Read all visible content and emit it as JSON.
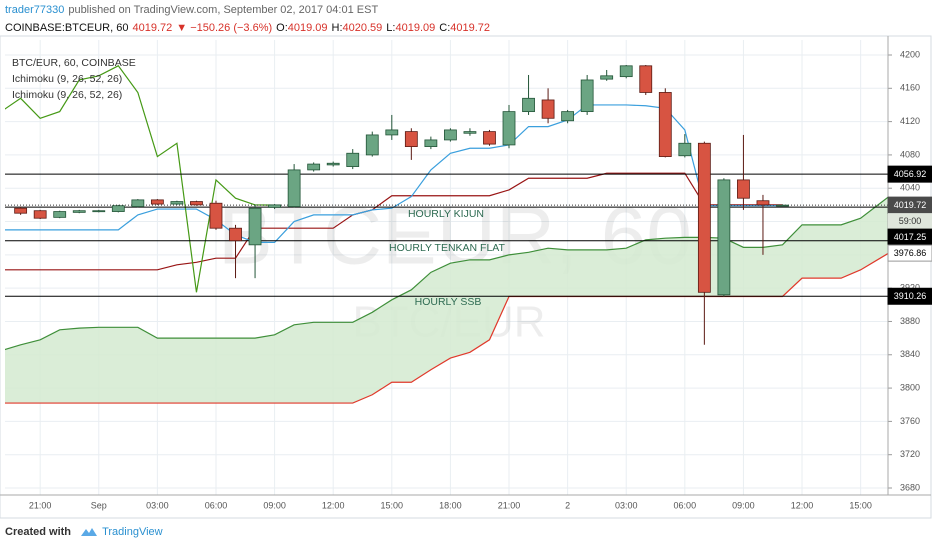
{
  "header": {
    "author": "trader77330",
    "published": "published on TradingView.com, September 02, 2017 04:01 EST",
    "symbol": "COINBASE:BTCEUR, 60",
    "last": "4019.72",
    "change": "▼ −150.26 (−3.6%)",
    "ohlc": [
      {
        "label": "O:",
        "value": "4019.09"
      },
      {
        "label": "H:",
        "value": "4020.59"
      },
      {
        "label": "L:",
        "value": "4019.09"
      },
      {
        "label": "C:",
        "value": "4019.72"
      }
    ]
  },
  "chart_data": {
    "type": "candlestick",
    "legend": [
      "BTC/EUR, 60, COINBASE",
      "Ichimoku (9, 26, 52, 26)",
      "Ichimoku (9, 26, 52, 26)"
    ],
    "watermark": "BTCEUR, 60",
    "watermark_sub": "BTC/EUR",
    "categories": [
      null,
      null,
      "21:00",
      null,
      null,
      "Sep",
      null,
      null,
      "03:00",
      null,
      null,
      "06:00",
      null,
      null,
      "09:00",
      null,
      null,
      "12:00",
      null,
      null,
      "15:00",
      null,
      null,
      "18:00",
      null,
      null,
      "21:00",
      null,
      null,
      "2",
      null,
      null,
      "03:00",
      null,
      null,
      "06:00",
      null,
      null,
      "09:00",
      null,
      null,
      "12:00",
      null,
      null,
      "15:00",
      null,
      null
    ],
    "open": [
      null,
      4016,
      4013,
      4005,
      4011,
      4012,
      4012,
      4018,
      4026,
      4021,
      4024,
      4022,
      3992,
      3972,
      4017,
      4018,
      4062,
      4068,
      4066,
      4080,
      4104,
      4108,
      4090,
      4098,
      4106,
      4108,
      4092,
      4132,
      4146,
      4121,
      4132,
      4171,
      4174,
      4187,
      4155,
      4079,
      4094,
      3912,
      4050,
      4025,
      4019.09,
      null,
      null,
      null,
      null,
      null,
      null
    ],
    "high": [
      null,
      4018,
      4014,
      4013,
      4014,
      4014,
      4020,
      4027,
      4027,
      4025,
      4025,
      4025,
      3996,
      4020,
      4021,
      4069,
      4071,
      4072,
      4087,
      4108,
      4128,
      4112,
      4102,
      4112,
      4112,
      4110,
      4140,
      4176,
      4160,
      4134,
      4176,
      4182,
      4188,
      4188,
      4160,
      4105,
      4096,
      4052,
      4104,
      4032,
      4020.59,
      null,
      null,
      null,
      null,
      null,
      null
    ],
    "low": [
      null,
      4008,
      4003,
      4004,
      4010,
      4011,
      4011,
      4017,
      4020,
      4020,
      4019,
      3990,
      3932,
      3932,
      4015,
      4017,
      4060,
      4066,
      4063,
      4078,
      4098,
      4074,
      4087,
      4096,
      4103,
      4091,
      4088,
      4128,
      4118,
      4118,
      4128,
      4169,
      4172,
      4152,
      4077,
      4077,
      3852,
      3910,
      4014,
      3960,
      4019.09,
      null,
      null,
      null,
      null,
      null,
      null
    ],
    "close": [
      null,
      4010,
      4004,
      4012,
      4013,
      4013,
      4019,
      4026,
      4021,
      4024,
      4020,
      3992,
      3977,
      4016,
      4020,
      4062,
      4069,
      4070,
      4082,
      4104,
      4110,
      4090,
      4098,
      4110,
      4108,
      4093,
      4132,
      4148,
      4124,
      4132,
      4170,
      4175,
      4187,
      4155,
      4078,
      4094,
      3915,
      4050,
      4028,
      4020,
      4019.72,
      null,
      null,
      null,
      null,
      null,
      null
    ],
    "up_color": "#6ba583",
    "up_border": "#225437",
    "down_color": "#d75442",
    "down_border": "#5b1a13",
    "series": [
      {
        "color": "#459915",
        "values": [
          4132,
          4148,
          4124,
          4132,
          4170,
          4175,
          4187,
          4155,
          4078,
          4094,
          3915,
          4050,
          4028,
          4020,
          4019.72,
          null,
          null,
          null,
          null,
          null,
          null,
          null,
          null,
          null,
          null,
          null,
          null,
          null,
          null,
          null,
          null,
          null,
          null,
          null,
          null,
          null,
          null,
          null,
          null,
          null,
          null,
          null,
          null,
          null,
          null,
          null,
          null
        ]
      },
      {
        "color": "#3a9fdd",
        "values": [
          3990,
          3990,
          3990,
          3990,
          3990,
          3990,
          3990,
          4008,
          4015,
          4015,
          4015,
          4002,
          3984,
          3975,
          3975,
          4000,
          4008,
          4008,
          4008,
          4014,
          4016,
          4030,
          4062,
          4082,
          4088,
          4088,
          4092,
          4114,
          4114,
          4122,
          4140,
          4140,
          4140,
          4139,
          4136,
          4110,
          4019,
          4019,
          4019,
          4019,
          4019,
          null,
          null,
          null,
          null,
          null,
          null
        ]
      },
      {
        "color": "#991515",
        "values": [
          3942,
          3942,
          3942,
          3942,
          3942,
          3942,
          3942,
          3942,
          3942,
          3948,
          3951,
          3956,
          3956,
          3992,
          3992,
          3992,
          3992,
          3992,
          4008,
          4014,
          4031,
          4031,
          4031,
          4031,
          4031,
          4031,
          4038,
          4052,
          4052,
          4052,
          4052,
          4058,
          4058,
          4058,
          4058,
          4058,
          4020,
          4020,
          4020,
          4020,
          4020,
          null,
          null,
          null,
          null,
          null,
          null
        ]
      },
      {
        "color": "#3f8f3a",
        "values": [
          3845,
          3852,
          3858,
          3870,
          3872,
          3873,
          3873,
          3873,
          3860,
          3860,
          3860,
          3860,
          3860,
          3860,
          3864,
          3876,
          3879,
          3879,
          3879,
          3891,
          3906,
          3918,
          3939,
          3950,
          3954,
          3954,
          3960,
          3963,
          3968,
          3966,
          3966,
          3966,
          3968,
          3978,
          3980,
          3981,
          3981,
          3980,
          3969,
          3969,
          3972,
          3996,
          3996,
          3996,
          4004,
          4022,
          4040
        ]
      },
      {
        "color": "#e0392b",
        "values": [
          3782,
          3782,
          3782,
          3782,
          3782,
          3782,
          3782,
          3782,
          3782,
          3782,
          3782,
          3782,
          3782,
          3782,
          3782,
          3782,
          3782,
          3782,
          3782,
          3792,
          3807,
          3807,
          3822,
          3836,
          3843,
          3858,
          3910,
          3910,
          3910,
          3910,
          3910,
          3910,
          3910,
          3910,
          3910,
          3910,
          3910,
          3910,
          3910,
          3910,
          3910,
          3932,
          3932,
          3932,
          3942,
          3956,
          3970
        ]
      }
    ],
    "cloud_color": "#d3ead0",
    "ylim": [
      3671.6,
      4218
    ],
    "yticks": [
      3680,
      3720,
      3760,
      3800,
      3840,
      3880,
      3920,
      3960,
      4000,
      4040,
      4080,
      4120,
      4160,
      4200
    ],
    "grid": true,
    "price_lines": [
      {
        "value": 4056.92,
        "label_color": "#000000"
      },
      {
        "value": 4017.25,
        "label_color": "#000000"
      },
      {
        "value": 3976.86,
        "label_color": "#ffffff"
      },
      {
        "value": 3910.26,
        "label_color": "#000000"
      }
    ],
    "last_price": 4019.72,
    "countdown": "59:00",
    "annotations": [
      "HOURLY KIJUN",
      "HOURLY TENKAN FLAT",
      "HOURLY SSB"
    ]
  },
  "footer": {
    "created": "Created with",
    "brand": "TradingView"
  }
}
